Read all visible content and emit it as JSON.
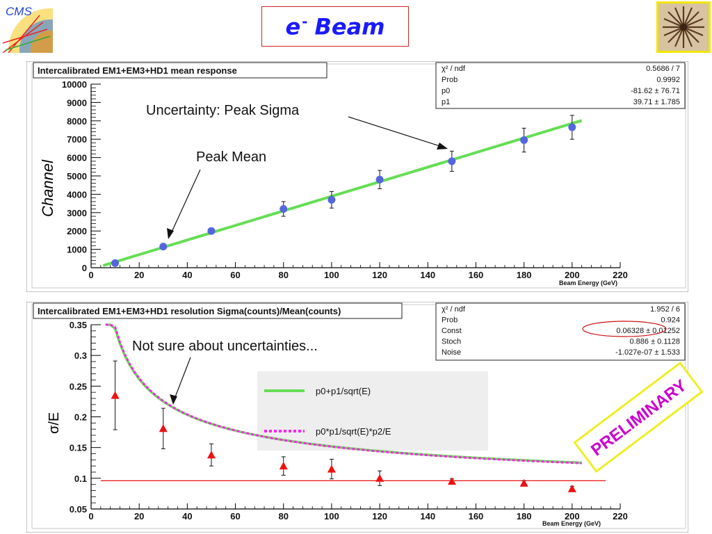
{
  "slide": {
    "title_base": "e",
    "title_sup": "-",
    "title_rest": "Beam",
    "logo_left_text": "CMS",
    "colors": {
      "title": "#1a1aff",
      "title_border": "#cc2222",
      "fit_green": "#66dd55",
      "marker_blue": "#5566dd",
      "marker_red": "#ee1111",
      "dashed_magenta": "#ff22ee",
      "preliminary": "#cc00cc",
      "preliminary_border": "#eeee22"
    }
  },
  "chart_data": [
    {
      "type": "scatter",
      "title": "Intercalibrated EM1+EM3+HD1 mean response",
      "xlabel": "Beam Energy (GeV)",
      "ylabel": "Channel",
      "xlim": [
        0,
        220
      ],
      "ylim": [
        0,
        10000
      ],
      "x_ticks": [
        0,
        20,
        40,
        60,
        80,
        100,
        120,
        140,
        160,
        180,
        200,
        220
      ],
      "y_ticks": [
        0,
        1000,
        2000,
        3000,
        4000,
        5000,
        6000,
        7000,
        8000,
        9000,
        10000
      ],
      "series": [
        {
          "x": [
            10,
            30,
            50,
            80,
            100,
            120,
            150,
            180,
            200
          ],
          "y": [
            250,
            1150,
            2000,
            3200,
            3700,
            4800,
            5800,
            6950,
            7650
          ],
          "yerr": [
            150,
            150,
            150,
            400,
            450,
            500,
            550,
            650,
            650
          ]
        }
      ],
      "fit_line": {
        "intercept": -81.62,
        "slope": 39.71,
        "x_range": [
          5,
          204
        ]
      },
      "stats_box": [
        {
          "label": "χ² / ndf",
          "value": "0.5686 / 7"
        },
        {
          "label": "Prob",
          "value": "0.9992"
        },
        {
          "label": "p0",
          "value": "-81.62 ± 76.71"
        },
        {
          "label": "p1",
          "value": "39.71 ± 1.785"
        }
      ],
      "annotations": [
        "Uncertainty: Peak Sigma",
        "Peak Mean"
      ],
      "grid": false
    },
    {
      "type": "scatter",
      "title": "Intercalibrated EM1+EM3+HD1 resolution Sigma(counts)/Mean(counts)",
      "xlabel": "Beam Energy (GeV)",
      "ylabel": "σ/E",
      "xlim": [
        0,
        220
      ],
      "ylim": [
        0.05,
        0.35
      ],
      "x_ticks": [
        0,
        20,
        40,
        60,
        80,
        100,
        120,
        140,
        160,
        180,
        200,
        220
      ],
      "y_ticks": [
        0.05,
        0.1,
        0.15,
        0.2,
        0.25,
        0.3,
        0.35
      ],
      "series": [
        {
          "x": [
            10,
            30,
            50,
            80,
            100,
            120,
            150,
            180,
            200
          ],
          "y": [
            0.235,
            0.181,
            0.138,
            0.12,
            0.115,
            0.1,
            0.095,
            0.092,
            0.083
          ],
          "yerr": [
            0.056,
            0.033,
            0.018,
            0.015,
            0.016,
            0.012,
            0.004,
            0.004,
            0.004
          ]
        }
      ],
      "fit_curves": [
        {
          "name": "p0+p1/sqrt(E)",
          "p0": 0.06328,
          "p1": 0.886,
          "p2": 0
        },
        {
          "name": "p0*p1/sqrt(E)*p2/E",
          "p0": 0.0615,
          "p1": 0.9,
          "p2": 0
        }
      ],
      "reference_line_y": 0.096,
      "stats_box": [
        {
          "label": "χ² / ndf",
          "value": "1.952 / 6"
        },
        {
          "label": "Prob",
          "value": "0.924"
        },
        {
          "label": "Const",
          "value": "0.06328 ± 0.01252"
        },
        {
          "label": "Stoch",
          "value": "0.886 ± 0.1128"
        },
        {
          "label": "Noise",
          "value": "-1.027e-07 ± 1.533"
        }
      ],
      "legend": [
        {
          "label": "p0+p1/sqrt(E)"
        },
        {
          "label": "p0*p1/sqrt(E)*p2/E"
        }
      ],
      "annotations": [
        "Not sure about uncertainties...",
        "PRELIMINARY"
      ],
      "grid": false
    }
  ]
}
